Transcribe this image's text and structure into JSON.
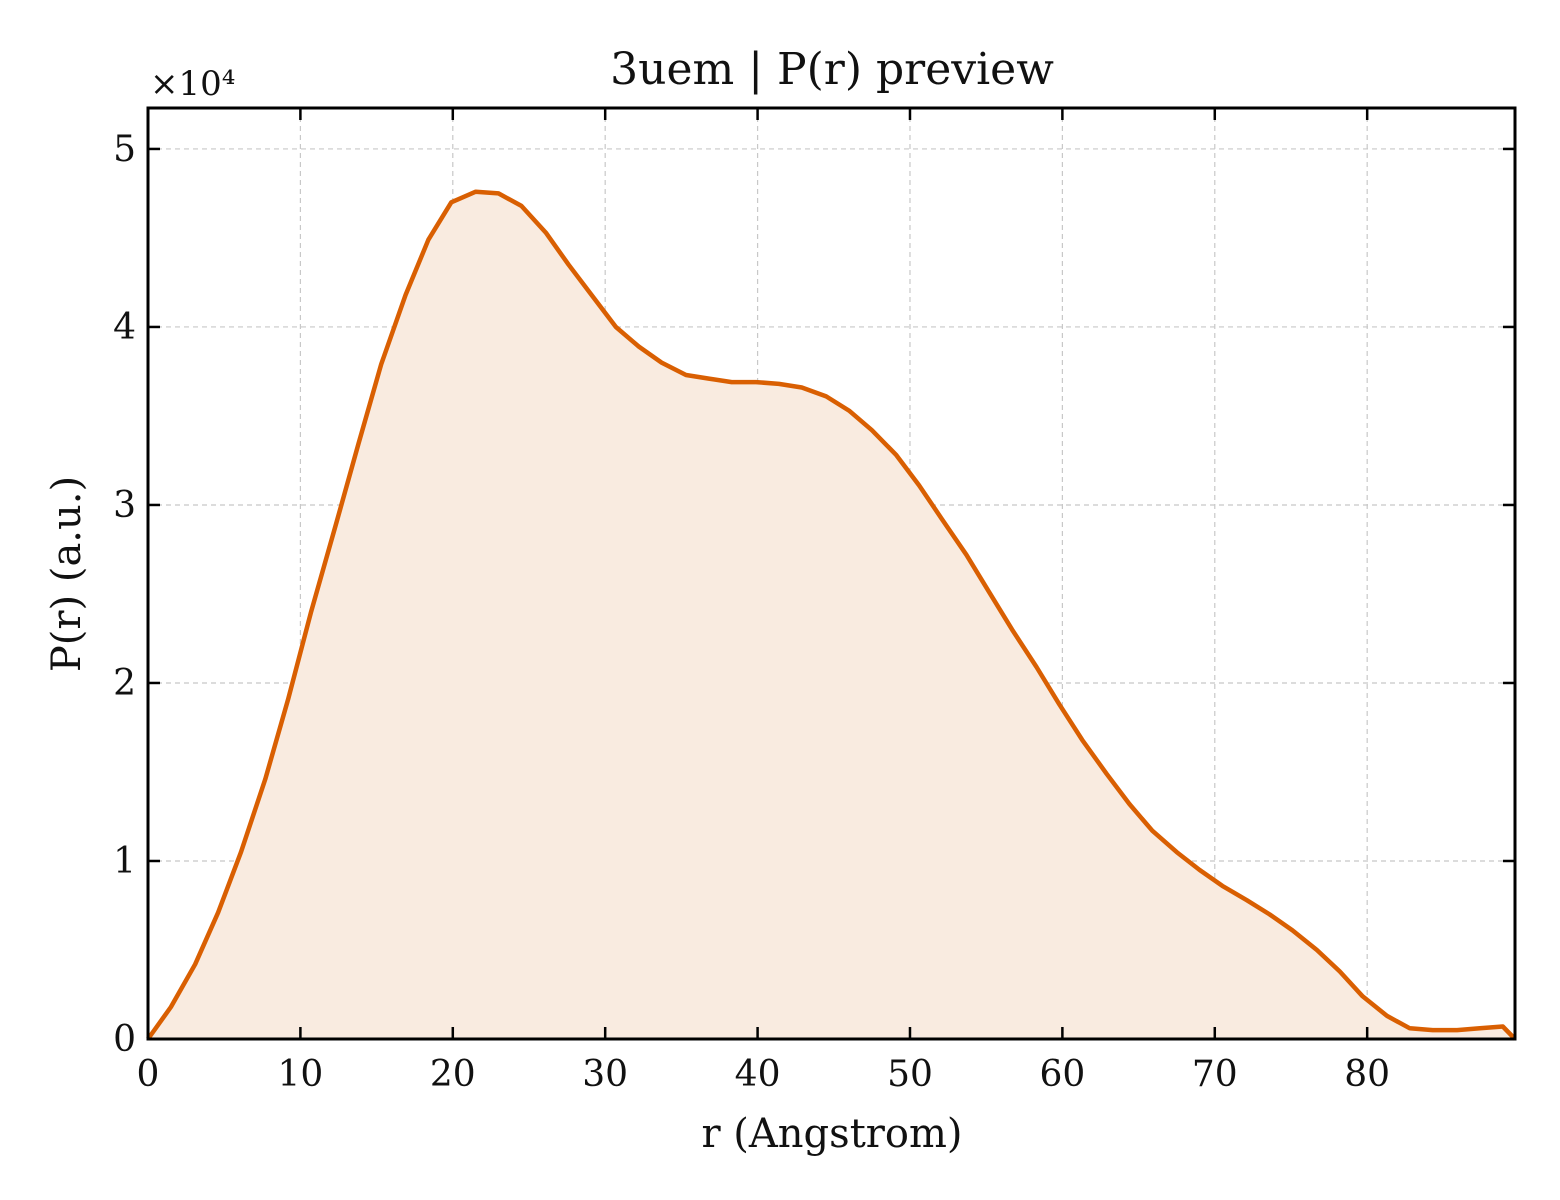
{
  "chart_data": {
    "type": "area",
    "title": "3uem | P(r) preview",
    "xlabel": "r (Angstrom)",
    "ylabel": "P(r) (a.u.)",
    "y_multiplier_label": "×10⁴",
    "xlim": [
      0,
      89.7
    ],
    "ylim": [
      0,
      52300
    ],
    "xticks": [
      0,
      10,
      20,
      30,
      40,
      50,
      60,
      70,
      80
    ],
    "xtick_labels": [
      "0",
      "10",
      "20",
      "30",
      "40",
      "50",
      "60",
      "70",
      "80"
    ],
    "yticks": [
      0,
      10000,
      20000,
      30000,
      40000,
      50000
    ],
    "ytick_labels": [
      "0",
      "1",
      "2",
      "3",
      "4",
      "5"
    ],
    "grid": true,
    "line_color": "#d95f02",
    "fill_color": "#f9ebe0",
    "series": [
      {
        "x": [
          0,
          1.5,
          3.1,
          4.6,
          6.1,
          7.7,
          9.2,
          10.7,
          12.3,
          13.8,
          15.3,
          16.9,
          18.4,
          19.9,
          21.5,
          23.0,
          24.5,
          26.1,
          27.6,
          29.1,
          30.7,
          32.2,
          33.7,
          35.3,
          36.8,
          38.3,
          39.9,
          41.4,
          42.9,
          44.5,
          46.0,
          47.5,
          49.1,
          50.6,
          52.1,
          53.7,
          55.2,
          56.7,
          58.3,
          59.8,
          61.3,
          62.9,
          64.4,
          65.9,
          67.5,
          69.0,
          70.5,
          72.1,
          73.6,
          75.1,
          76.7,
          78.2,
          79.7,
          81.3,
          82.8,
          84.3,
          85.9,
          87.4,
          88.9,
          89.7
        ],
        "y": [
          0,
          1800,
          4200,
          7100,
          10500,
          14600,
          19100,
          24000,
          28800,
          33400,
          37900,
          41800,
          44900,
          47000,
          47600,
          47500,
          46800,
          45300,
          43500,
          41800,
          40000,
          38900,
          38000,
          37300,
          37100,
          36900,
          36900,
          36800,
          36600,
          36100,
          35300,
          34200,
          32800,
          31100,
          29200,
          27200,
          25100,
          23000,
          20900,
          18800,
          16800,
          14900,
          13200,
          11700,
          10500,
          9500,
          8600,
          7800,
          7000,
          6100,
          5000,
          3800,
          2400,
          1300,
          600,
          500,
          500,
          600,
          700,
          0
        ]
      }
    ]
  }
}
